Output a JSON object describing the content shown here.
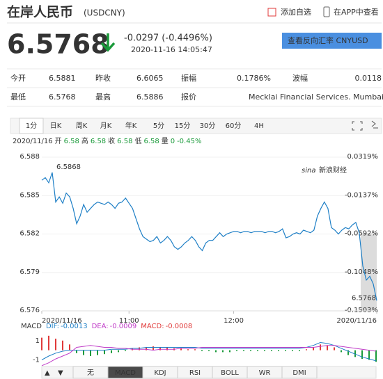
{
  "header": {
    "title": "在岸人民币",
    "symbol": "(USDCNY)",
    "add_watch": "添加自选",
    "app_view": "在APP中查看"
  },
  "quote": {
    "price": "6.5768",
    "change": "-0.0297 (-0.4496%)",
    "time": "2020-11-16 14:05:47",
    "reverse_button": "查看反向汇率 CNYUSD"
  },
  "stats": {
    "rows": [
      [
        "今开",
        "6.5881",
        "昨收",
        "6.6065",
        "振幅",
        "0.1786%",
        "波幅",
        "0.0118"
      ],
      [
        "最低",
        "6.5768",
        "最高",
        "6.5886",
        "报价",
        "Mecklai Financial Services. Mumbai"
      ]
    ]
  },
  "tabs": [
    "1分",
    "日K",
    "周K",
    "月K",
    "年K",
    "5分",
    "15分",
    "30分",
    "60分",
    "4H"
  ],
  "info_bar": [
    "2020/11/16",
    "开",
    "6.58",
    "高",
    "6.58",
    "收",
    "6.58",
    "低",
    "6.58",
    "量",
    "0",
    "-0.45%"
  ],
  "indicator_tabs": [
    "无",
    "MACD",
    "KDJ",
    "RSI",
    "BOLL",
    "WR",
    "DMI"
  ],
  "watermark": "新浪财经",
  "chart_data": [
    {
      "type": "line",
      "color": "#1e7fc6",
      "grid": true,
      "values": [
        6.5862,
        6.5864,
        6.586,
        6.5868,
        6.5845,
        6.5849,
        6.5844,
        6.5852,
        6.5849,
        6.584,
        6.5828,
        6.5834,
        6.5843,
        6.5837,
        6.584,
        6.5843,
        6.5845,
        6.5844,
        6.5843,
        6.5845,
        6.5843,
        6.584,
        6.5844,
        6.5845,
        6.5848,
        6.5844,
        6.584,
        6.5832,
        6.5824,
        6.5818,
        6.5816,
        6.5814,
        6.5815,
        6.5818,
        6.5813,
        6.5815,
        6.5818,
        6.5815,
        6.581,
        6.5808,
        6.581,
        6.5813,
        6.5815,
        6.5818,
        6.5815,
        6.581,
        6.5807,
        6.5813,
        6.5815,
        6.5815,
        6.5818,
        6.5821,
        6.5818,
        6.582,
        6.5821,
        6.5822,
        6.5822,
        6.5821,
        6.5822,
        6.5822,
        6.5821,
        6.5822,
        6.5822,
        6.5822,
        6.5821,
        6.5822,
        6.5822,
        6.5821,
        6.5822,
        6.5824,
        6.5817,
        6.5818,
        6.582,
        6.5821,
        6.582,
        6.5823,
        6.5822,
        6.5821,
        6.5823,
        6.5834,
        6.584,
        6.5845,
        6.584,
        6.5825,
        6.5823,
        6.582,
        6.5823,
        6.5825,
        6.5824,
        6.5827,
        6.5829,
        6.5821,
        6.5795,
        6.5784,
        6.5787,
        6.5781,
        6.5768
      ],
      "xlim": [
        0,
        96
      ],
      "xticks": [
        {
          "value": 0,
          "label": "2020/11/16"
        },
        {
          "value": 25,
          "label": "11:00"
        },
        {
          "value": 55,
          "label": "12:00"
        },
        {
          "value": 96,
          "label": "2020/11/16"
        }
      ],
      "ylim": [
        6.576,
        6.588
      ],
      "yticks": [
        6.588,
        6.585,
        6.582,
        6.579,
        6.576
      ],
      "y2lim": [
        -0.1503,
        0.0319
      ],
      "y2ticks": [
        {
          "value": 0.0319,
          "label": "0.0319%"
        },
        {
          "value": -0.0137,
          "label": "-0.0137%"
        },
        {
          "value": -0.0592,
          "label": "-0.0592%"
        },
        {
          "value": -0.1048,
          "label": "-0.1048%"
        },
        {
          "value": -0.1503,
          "label": "-0.1503%"
        }
      ],
      "annotations": [
        {
          "text": "6.5868",
          "index": 3
        },
        {
          "text": "6.5768",
          "index": 96
        }
      ]
    },
    {
      "type": "macd",
      "title": "MACD",
      "xlim": [
        0,
        48
      ],
      "ylim": [
        -1.9,
        3
      ],
      "yticks": [
        1,
        -1
      ],
      "series": [
        {
          "name": "DIF:",
          "last": "-0.0013",
          "color": "#1e7fc6",
          "kind": "line",
          "values": [
            -1.0,
            -0.6,
            -0.3,
            -0.1,
            0.0,
            0.0,
            0.0,
            0.0,
            0.0,
            0.0,
            0.1,
            0.1,
            0.1,
            0.2,
            0.2,
            0.3,
            0.3,
            0.3,
            0.3,
            0.3,
            0.3,
            0.3,
            0.3,
            0.2,
            0.2,
            0.2,
            0.2,
            0.2,
            0.2,
            0.2,
            0.2,
            0.2,
            0.2,
            0.2,
            0.2,
            0.2,
            0.2,
            0.2,
            0.3,
            0.5,
            0.8,
            0.7,
            0.5,
            0.2,
            -0.1,
            -0.4,
            -0.7,
            -0.9,
            -1.1
          ]
        },
        {
          "name": "DEA:",
          "last": "-0.0009",
          "color": "#c03cc8",
          "kind": "line",
          "values": [
            -1.6,
            -1.3,
            -0.9,
            -0.6,
            -0.3,
            0.3,
            0.4,
            0.5,
            0.4,
            0.3,
            0.3,
            0.2,
            0.2,
            0.1,
            0.1,
            0.1,
            0.0,
            0.1,
            0.1,
            0.1,
            0.2,
            0.2,
            0.2,
            0.3,
            0.3,
            0.3,
            0.3,
            0.3,
            0.3,
            0.3,
            0.3,
            0.3,
            0.3,
            0.3,
            0.3,
            0.3,
            0.3,
            0.3,
            0.3,
            0.3,
            0.4,
            0.5,
            0.5,
            0.4,
            0.3,
            0.2,
            0.1,
            0.0,
            -0.1
          ]
        },
        {
          "name": "MACD:",
          "last": "-0.0008",
          "color": "#e03a3a",
          "kind": "bar",
          "values": [
            1.3,
            1.5,
            1.2,
            1.0,
            0.6,
            -0.3,
            -0.5,
            -0.6,
            -0.5,
            -0.4,
            -0.3,
            -0.2,
            -0.1,
            0.2,
            0.3,
            0.3,
            0.4,
            0.3,
            0.3,
            0.2,
            0.2,
            0.1,
            0.1,
            -0.1,
            -0.1,
            -0.2,
            -0.2,
            -0.2,
            -0.1,
            -0.1,
            -0.1,
            -0.1,
            -0.1,
            -0.1,
            -0.1,
            -0.1,
            -0.1,
            -0.1,
            0.1,
            0.3,
            0.6,
            0.5,
            0.3,
            -0.2,
            -0.5,
            -0.7,
            -0.9,
            -1.0,
            -1.2
          ]
        }
      ]
    }
  ]
}
